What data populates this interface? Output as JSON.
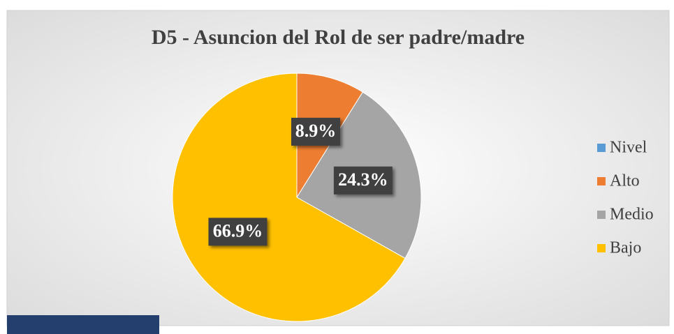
{
  "chart_data": {
    "type": "pie",
    "title": "D5 - Asuncion del Rol de ser padre/madre",
    "categories": [
      "Nivel",
      "Alto",
      "Medio",
      "Bajo"
    ],
    "values": [
      null,
      8.9,
      24.3,
      66.9
    ],
    "value_labels": [
      null,
      "8.9%",
      "24.3%",
      "66.9%"
    ],
    "colors": [
      "#5b9bd5",
      "#ed7d31",
      "#a5a5a5",
      "#ffc000"
    ],
    "legend": "right"
  }
}
